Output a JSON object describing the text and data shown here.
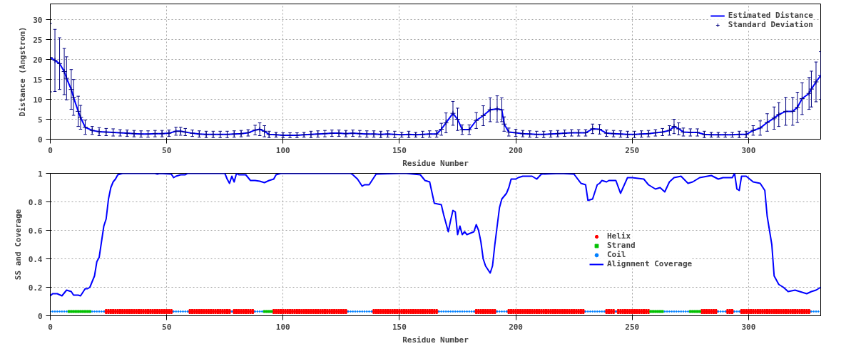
{
  "chart_data": [
    {
      "type": "line",
      "xlabel": "Residue Number",
      "ylabel": "Distance (Angstrom)",
      "xlim": [
        0,
        331
      ],
      "ylim": [
        0,
        34
      ],
      "xticks": [
        0,
        50,
        100,
        150,
        200,
        250,
        300
      ],
      "yticks": [
        0,
        5,
        10,
        15,
        20,
        25,
        30
      ],
      "grid": true,
      "legend": "top right",
      "x": [
        0,
        2,
        4,
        6,
        7,
        9,
        10,
        12,
        13,
        15,
        18,
        21,
        24,
        27,
        30,
        33,
        36,
        39,
        42,
        45,
        48,
        51,
        54,
        56,
        58,
        61,
        64,
        67,
        70,
        73,
        76,
        79,
        82,
        85,
        88,
        90,
        92,
        94,
        97,
        100,
        103,
        106,
        109,
        112,
        115,
        118,
        121,
        124,
        127,
        130,
        133,
        136,
        139,
        142,
        145,
        148,
        151,
        154,
        157,
        160,
        163,
        166,
        168,
        170,
        173,
        175,
        177,
        180,
        183,
        186,
        189,
        192,
        194,
        195,
        197,
        200,
        203,
        206,
        209,
        212,
        215,
        218,
        221,
        224,
        227,
        230,
        233,
        236,
        239,
        242,
        245,
        248,
        251,
        254,
        257,
        260,
        263,
        266,
        268,
        270,
        272,
        275,
        278,
        281,
        284,
        287,
        290,
        293,
        296,
        299,
        302,
        305,
        308,
        311,
        313,
        316,
        319,
        321,
        323,
        326,
        327,
        329,
        331
      ],
      "series": [
        {
          "name": "Estimated Distance",
          "color": "#0000ff",
          "values": [
            20.5,
            19.8,
            19,
            17,
            15.3,
            12.5,
            10.5,
            7,
            5.5,
            3,
            2.2,
            1.9,
            1.8,
            1.7,
            1.6,
            1.5,
            1.4,
            1.3,
            1.3,
            1.4,
            1.4,
            1.5,
            2,
            2,
            1.8,
            1.5,
            1.3,
            1.2,
            1.2,
            1.2,
            1.2,
            1.3,
            1.4,
            1.6,
            2.3,
            2.5,
            2,
            1.2,
            1.1,
            1,
            1,
            1,
            1.1,
            1.2,
            1.3,
            1.4,
            1.5,
            1.5,
            1.4,
            1.5,
            1.4,
            1.3,
            1.3,
            1.2,
            1.3,
            1.2,
            1.1,
            1.2,
            1.1,
            1.2,
            1.3,
            1.3,
            2.5,
            4.1,
            6.5,
            5,
            2.4,
            2.4,
            4.7,
            5.9,
            7.4,
            7.6,
            7.4,
            3.8,
            1.8,
            1.6,
            1.4,
            1.3,
            1.2,
            1.2,
            1.3,
            1.4,
            1.5,
            1.6,
            1.6,
            1.6,
            2.6,
            2.5,
            1.5,
            1.4,
            1.3,
            1.2,
            1.2,
            1.3,
            1.4,
            1.6,
            1.8,
            2.2,
            3.2,
            2.6,
            1.8,
            1.7,
            1.7,
            1.2,
            1.1,
            1.1,
            1.1,
            1.1,
            1.2,
            1.2,
            2.2,
            2.8,
            4.2,
            5.3,
            6.2,
            7,
            7,
            8,
            10.2,
            11.5,
            12.6,
            14.4,
            16
          ]
        },
        {
          "name": "Standard Deviation",
          "type": "scatter",
          "marker": "cross",
          "color": "#000080",
          "values": [
            20.5,
            19.8,
            19,
            17,
            15.3,
            12.5,
            10.5,
            7,
            5.5,
            3,
            2.2,
            1.9,
            1.8,
            1.7,
            1.6,
            1.5,
            1.4,
            1.3,
            1.3,
            1.4,
            1.4,
            1.5,
            2,
            2,
            1.8,
            1.5,
            1.3,
            1.2,
            1.2,
            1.2,
            1.2,
            1.3,
            1.4,
            1.6,
            2.3,
            2.5,
            2,
            1.2,
            1.1,
            1,
            1,
            1,
            1.1,
            1.2,
            1.3,
            1.4,
            1.5,
            1.5,
            1.4,
            1.5,
            1.4,
            1.3,
            1.3,
            1.2,
            1.3,
            1.2,
            1.1,
            1.2,
            1.1,
            1.2,
            1.3,
            1.3,
            2.5,
            4.1,
            6.5,
            5,
            2.4,
            2.4,
            4.7,
            5.9,
            7.4,
            7.6,
            7.4,
            3.8,
            1.8,
            1.6,
            1.4,
            1.3,
            1.2,
            1.2,
            1.3,
            1.4,
            1.5,
            1.6,
            1.6,
            1.6,
            2.6,
            2.5,
            1.5,
            1.4,
            1.3,
            1.2,
            1.2,
            1.3,
            1.4,
            1.6,
            1.8,
            2.2,
            3.2,
            2.6,
            1.8,
            1.7,
            1.7,
            1.2,
            1.1,
            1.1,
            1.1,
            1.1,
            1.2,
            1.2,
            2.2,
            2.8,
            4.2,
            5.3,
            6.2,
            7,
            7,
            8,
            10.2,
            11.5,
            12.6,
            14.4,
            16
          ],
          "errors": [
            8.6,
            7.8,
            6.5,
            5.8,
            5.4,
            5,
            4.5,
            3.8,
            3,
            1.8,
            1,
            1,
            0.9,
            0.9,
            0.8,
            0.8,
            0.8,
            0.8,
            0.8,
            0.8,
            0.8,
            0.8,
            1,
            1,
            0.9,
            0.8,
            0.8,
            0.8,
            0.8,
            0.8,
            0.8,
            0.8,
            0.8,
            0.8,
            1.2,
            1.6,
            1.4,
            0.8,
            0.6,
            0.6,
            0.6,
            0.6,
            0.6,
            0.8,
            0.8,
            0.8,
            0.8,
            0.8,
            0.8,
            0.8,
            0.8,
            0.8,
            0.8,
            0.8,
            0.8,
            0.8,
            0.6,
            0.8,
            0.6,
            0.8,
            0.8,
            0.8,
            1.5,
            2.5,
            3,
            2.8,
            1.2,
            1.2,
            2,
            2.5,
            3,
            3.3,
            3,
            1.8,
            1,
            0.9,
            0.8,
            0.8,
            0.8,
            0.8,
            0.8,
            0.8,
            0.8,
            0.8,
            0.8,
            0.8,
            1.2,
            1.2,
            0.8,
            0.8,
            0.8,
            0.8,
            0.8,
            0.8,
            0.8,
            0.8,
            0.9,
            1.2,
            1.8,
            1.5,
            1,
            0.9,
            0.9,
            0.8,
            0.6,
            0.6,
            0.6,
            0.6,
            0.8,
            0.8,
            1.2,
            1.8,
            2.2,
            2.8,
            3,
            3.5,
            3.5,
            3.8,
            4,
            4,
            4.5,
            5,
            6
          ]
        }
      ]
    },
    {
      "type": "line",
      "xlabel": "Residue Number",
      "ylabel": "SS and Coverage",
      "xlim": [
        0,
        331
      ],
      "ylim": [
        0,
        1
      ],
      "xticks": [
        0,
        50,
        100,
        150,
        200,
        250,
        300
      ],
      "yticks": [
        0,
        0.2,
        0.4,
        0.6,
        0.8,
        1
      ],
      "grid": true,
      "legend": "right",
      "series": [
        {
          "name": "Helix",
          "type": "scatter",
          "marker": "cross",
          "color": "#ff0000",
          "x": [
            24,
            25,
            26,
            27,
            28,
            29,
            30,
            31,
            32,
            33,
            34,
            35,
            36,
            37,
            38,
            39,
            40,
            41,
            42,
            43,
            44,
            45,
            46,
            47,
            48,
            49,
            50,
            51,
            52,
            60,
            61,
            62,
            63,
            64,
            65,
            66,
            67,
            68,
            69,
            70,
            71,
            72,
            73,
            74,
            75,
            76,
            77,
            79,
            80,
            81,
            82,
            83,
            84,
            85,
            86,
            87,
            96,
            97,
            98,
            99,
            100,
            101,
            102,
            103,
            104,
            105,
            106,
            107,
            108,
            109,
            110,
            111,
            112,
            113,
            114,
            115,
            116,
            117,
            118,
            119,
            120,
            121,
            122,
            123,
            124,
            125,
            126,
            127,
            139,
            140,
            141,
            142,
            143,
            144,
            145,
            146,
            147,
            148,
            149,
            150,
            151,
            152,
            153,
            154,
            155,
            156,
            157,
            158,
            159,
            160,
            161,
            162,
            163,
            164,
            165,
            166,
            183,
            184,
            185,
            186,
            187,
            188,
            189,
            190,
            191,
            197,
            198,
            199,
            200,
            201,
            202,
            203,
            204,
            205,
            206,
            207,
            208,
            209,
            210,
            211,
            212,
            213,
            214,
            215,
            216,
            217,
            218,
            219,
            220,
            221,
            222,
            223,
            224,
            225,
            226,
            227,
            228,
            229,
            239,
            240,
            241,
            242,
            244,
            245,
            246,
            247,
            248,
            249,
            250,
            251,
            252,
            253,
            254,
            255,
            256,
            257,
            280,
            281,
            282,
            283,
            284,
            285,
            286,
            291,
            292,
            293,
            297,
            298,
            299,
            300,
            301,
            302,
            303,
            304,
            305,
            306,
            307,
            308,
            309,
            310,
            311,
            312,
            313,
            314,
            315,
            316,
            317,
            318,
            319,
            320,
            321,
            322,
            323,
            324,
            325,
            326
          ],
          "values": [
            0.03,
            0.03,
            0.03,
            0.03,
            0.03,
            0.03,
            0.03,
            0.03,
            0.03,
            0.03,
            0.03,
            0.03,
            0.03,
            0.03,
            0.03,
            0.03,
            0.03,
            0.03,
            0.03,
            0.03,
            0.03,
            0.03,
            0.03,
            0.03,
            0.03,
            0.03,
            0.03,
            0.03,
            0.03,
            0.03,
            0.03,
            0.03,
            0.03,
            0.03,
            0.03,
            0.03,
            0.03,
            0.03,
            0.03,
            0.03,
            0.03,
            0.03,
            0.03,
            0.03,
            0.03,
            0.03,
            0.03,
            0.03,
            0.03,
            0.03,
            0.03,
            0.03,
            0.03,
            0.03,
            0.03,
            0.03,
            0.03,
            0.03,
            0.03,
            0.03,
            0.03,
            0.03,
            0.03,
            0.03,
            0.03,
            0.03,
            0.03,
            0.03,
            0.03,
            0.03,
            0.03,
            0.03,
            0.03,
            0.03,
            0.03,
            0.03,
            0.03,
            0.03,
            0.03,
            0.03,
            0.03,
            0.03,
            0.03,
            0.03,
            0.03,
            0.03,
            0.03,
            0.03,
            0.03,
            0.03,
            0.03,
            0.03,
            0.03,
            0.03,
            0.03,
            0.03,
            0.03,
            0.03,
            0.03,
            0.03,
            0.03,
            0.03,
            0.03,
            0.03,
            0.03,
            0.03,
            0.03,
            0.03,
            0.03,
            0.03,
            0.03,
            0.03,
            0.03,
            0.03,
            0.03,
            0.03,
            0.03,
            0.03,
            0.03,
            0.03,
            0.03,
            0.03,
            0.03,
            0.03,
            0.03,
            0.03,
            0.03,
            0.03,
            0.03,
            0.03,
            0.03,
            0.03,
            0.03,
            0.03,
            0.03,
            0.03,
            0.03,
            0.03,
            0.03,
            0.03,
            0.03,
            0.03,
            0.03,
            0.03,
            0.03,
            0.03,
            0.03,
            0.03,
            0.03,
            0.03,
            0.03,
            0.03,
            0.03,
            0.03,
            0.03,
            0.03,
            0.03,
            0.03,
            0.03,
            0.03,
            0.03,
            0.03,
            0.03,
            0.03,
            0.03,
            0.03,
            0.03,
            0.03,
            0.03,
            0.03,
            0.03,
            0.03,
            0.03,
            0.03,
            0.03,
            0.03,
            0.03,
            0.03,
            0.03,
            0.03,
            0.03,
            0.03,
            0.03,
            0.03,
            0.03,
            0.03,
            0.03,
            0.03,
            0.03,
            0.03,
            0.03,
            0.03,
            0.03,
            0.03,
            0.03,
            0.03,
            0.03,
            0.03,
            0.03,
            0.03,
            0.03,
            0.03,
            0.03,
            0.03,
            0.03,
            0.03,
            0.03,
            0.03,
            0.03,
            0.03,
            0.03,
            0.03,
            0.03,
            0.03,
            0.03,
            0.03
          ]
        },
        {
          "name": "Strand",
          "type": "scatter",
          "marker": "square",
          "color": "#00c000",
          "x": [
            8,
            9,
            10,
            11,
            12,
            13,
            14,
            15,
            16,
            17,
            92,
            93,
            94,
            95,
            258,
            259,
            260,
            261,
            262,
            263,
            275,
            276,
            277,
            278,
            279
          ],
          "values": [
            0.03,
            0.03,
            0.03,
            0.03,
            0.03,
            0.03,
            0.03,
            0.03,
            0.03,
            0.03,
            0.03,
            0.03,
            0.03,
            0.03,
            0.03,
            0.03,
            0.03,
            0.03,
            0.03,
            0.03,
            0.03,
            0.03,
            0.03,
            0.03,
            0.03
          ]
        },
        {
          "name": "Coil",
          "type": "scatter",
          "marker": "circle",
          "color": "#0080ff",
          "x": [
            0,
            1,
            2,
            3,
            4,
            5,
            6,
            7,
            18,
            19,
            20,
            21,
            22,
            23,
            53,
            54,
            55,
            56,
            57,
            58,
            59,
            78,
            88,
            89,
            90,
            91,
            128,
            129,
            130,
            131,
            132,
            133,
            134,
            135,
            136,
            137,
            138,
            167,
            168,
            169,
            170,
            171,
            172,
            173,
            174,
            175,
            176,
            177,
            178,
            179,
            180,
            181,
            182,
            192,
            193,
            194,
            195,
            196,
            230,
            231,
            232,
            233,
            234,
            235,
            236,
            237,
            238,
            243,
            264,
            265,
            266,
            267,
            268,
            269,
            270,
            271,
            272,
            273,
            274,
            287,
            288,
            289,
            290,
            294,
            295,
            296,
            327,
            328,
            329,
            330
          ],
          "values": [
            0.03,
            0.03,
            0.03,
            0.03,
            0.03,
            0.03,
            0.03,
            0.03,
            0.03,
            0.03,
            0.03,
            0.03,
            0.03,
            0.03,
            0.03,
            0.03,
            0.03,
            0.03,
            0.03,
            0.03,
            0.03,
            0.03,
            0.03,
            0.03,
            0.03,
            0.03,
            0.03,
            0.03,
            0.03,
            0.03,
            0.03,
            0.03,
            0.03,
            0.03,
            0.03,
            0.03,
            0.03,
            0.03,
            0.03,
            0.03,
            0.03,
            0.03,
            0.03,
            0.03,
            0.03,
            0.03,
            0.03,
            0.03,
            0.03,
            0.03,
            0.03,
            0.03,
            0.03,
            0.03,
            0.03,
            0.03,
            0.03,
            0.03,
            0.03,
            0.03,
            0.03,
            0.03,
            0.03,
            0.03,
            0.03,
            0.03,
            0.03,
            0.03,
            0.03,
            0.03,
            0.03,
            0.03,
            0.03,
            0.03,
            0.03,
            0.03,
            0.03,
            0.03,
            0.03,
            0.03,
            0.03,
            0.03,
            0.03,
            0.03,
            0.03,
            0.03,
            0.03,
            0.03,
            0.03,
            0.03
          ]
        },
        {
          "name": "Alignment Coverage",
          "color": "#0000ff",
          "x": [
            0,
            1,
            3,
            5,
            7,
            9,
            10,
            12,
            13,
            15,
            16,
            17,
            18,
            19,
            20,
            21,
            22,
            23,
            24,
            25,
            26,
            27,
            28,
            29,
            31,
            45,
            46,
            47,
            52,
            53,
            54,
            56,
            58,
            59,
            75,
            76,
            77,
            78,
            79,
            80,
            81,
            84,
            86,
            88,
            90,
            92,
            94,
            96,
            97,
            99,
            129,
            130,
            132,
            134,
            135,
            137,
            139,
            140,
            150,
            153,
            159,
            161,
            163,
            165,
            168,
            169,
            171,
            172,
            173,
            174,
            175,
            176,
            177,
            178,
            179,
            182,
            183,
            184,
            185,
            186,
            187,
            189,
            190,
            191,
            193,
            194,
            196,
            197,
            198,
            200,
            201,
            203,
            207,
            209,
            211,
            219,
            225,
            228,
            230,
            231,
            233,
            235,
            236,
            237,
            239,
            240,
            243,
            245,
            248,
            250,
            255,
            257,
            260,
            262,
            264,
            266,
            268,
            271,
            274,
            276,
            279,
            284,
            287,
            289,
            293,
            294,
            295,
            296,
            297,
            299,
            302,
            305,
            307,
            308,
            310,
            311,
            313,
            315,
            317,
            320,
            323,
            325,
            327,
            329,
            331
          ],
          "values": [
            0.14,
            0.155,
            0.155,
            0.14,
            0.18,
            0.17,
            0.145,
            0.145,
            0.14,
            0.19,
            0.19,
            0.2,
            0.24,
            0.28,
            0.38,
            0.41,
            0.52,
            0.63,
            0.68,
            0.82,
            0.9,
            0.94,
            0.96,
            0.99,
            1,
            1,
            0.995,
            1,
            0.995,
            0.97,
            0.98,
            0.99,
            0.99,
            1,
            1,
            0.96,
            0.93,
            0.98,
            0.94,
            1,
            0.99,
            0.99,
            0.95,
            0.95,
            0.945,
            0.935,
            0.95,
            0.96,
            0.99,
            1,
            1,
            0.99,
            0.96,
            0.91,
            0.92,
            0.92,
            0.97,
            0.995,
            1,
            1,
            0.99,
            0.95,
            0.94,
            0.79,
            0.78,
            0.71,
            0.59,
            0.67,
            0.74,
            0.73,
            0.57,
            0.63,
            0.57,
            0.59,
            0.57,
            0.59,
            0.64,
            0.6,
            0.52,
            0.4,
            0.35,
            0.3,
            0.35,
            0.5,
            0.76,
            0.82,
            0.86,
            0.9,
            0.96,
            0.96,
            0.97,
            0.98,
            0.98,
            0.96,
            0.995,
            1,
            0.995,
            0.93,
            0.92,
            0.81,
            0.82,
            0.92,
            0.93,
            0.95,
            0.94,
            0.95,
            0.95,
            0.86,
            0.97,
            0.97,
            0.96,
            0.92,
            0.89,
            0.9,
            0.87,
            0.94,
            0.97,
            0.98,
            0.93,
            0.94,
            0.97,
            0.985,
            0.96,
            0.97,
            0.97,
            1,
            0.89,
            0.88,
            0.98,
            0.98,
            0.94,
            0.93,
            0.88,
            0.7,
            0.5,
            0.28,
            0.22,
            0.2,
            0.17,
            0.18,
            0.165,
            0.155,
            0.17,
            0.18,
            0.2
          ]
        }
      ]
    }
  ]
}
